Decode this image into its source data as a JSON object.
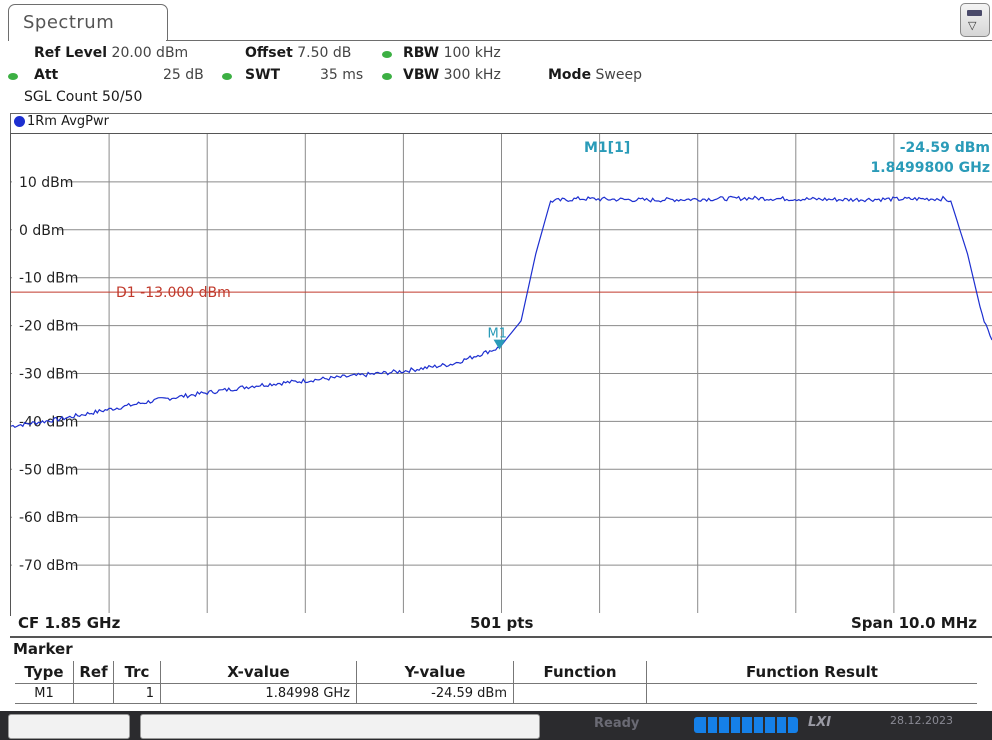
{
  "window": {
    "tab_title": "Spectrum"
  },
  "settings": {
    "ref_level_label": "Ref Level",
    "ref_level_value": "20.00 dBm",
    "offset_label": "Offset",
    "offset_value": "7.50 dB",
    "rbw_label": "RBW",
    "rbw_value": "100 kHz",
    "att_label": "Att",
    "att_value": "25 dB",
    "swt_label": "SWT",
    "swt_value": "35 ms",
    "vbw_label": "VBW",
    "vbw_value": "300 kHz",
    "mode_label": "Mode",
    "mode_value": "Sweep",
    "sgl_count": "SGL Count 50/50"
  },
  "trace_label": "1Rm AvgPwr",
  "chart_data": {
    "type": "line",
    "ylim": [
      -80,
      20
    ],
    "y_ticks": [
      10,
      0,
      -10,
      -20,
      -30,
      -40,
      -50,
      -60,
      -70
    ],
    "y_tick_labels": [
      "10 dBm",
      "0 dBm",
      "-10 dBm",
      "-20 dBm",
      "-30 dBm",
      "-40 dBm",
      "-50 dBm",
      "-60 dBm",
      "-70 dBm"
    ],
    "xlim": [
      1.845,
      1.855
    ],
    "x_unit": "GHz",
    "grid": true,
    "series": [
      {
        "x": [
          1.845,
          1.8455,
          1.846,
          1.8465,
          1.847,
          1.8475,
          1.848,
          1.8485,
          1.849,
          1.8495,
          1.84998,
          1.8502,
          1.85035,
          1.8505,
          1.8508,
          1.8515,
          1.8525,
          1.8535,
          1.8545,
          1.85458,
          1.85475,
          1.8549,
          1.855
        ],
        "values": [
          -41,
          -39.5,
          -37.5,
          -35.5,
          -34,
          -32.5,
          -31.5,
          -30.5,
          -29.5,
          -28,
          -24.59,
          -19,
          -5,
          6,
          6.5,
          6.2,
          6.6,
          6.3,
          6.5,
          6,
          -5,
          -18,
          -23
        ]
      }
    ],
    "display_line": {
      "label": "D1  -13.000 dBm",
      "value": -13.0
    },
    "marker": {
      "name": "M1",
      "readout_label": "M1[1]",
      "x": 1.84998,
      "y": -24.59,
      "y_text": "-24.59 dBm",
      "x_text": "1.8499800 GHz"
    },
    "footer": {
      "cf": "CF 1.85 GHz",
      "points": "501 pts",
      "span": "Span 10.0 MHz"
    }
  },
  "marker_table": {
    "title": "Marker",
    "headers": [
      "Type",
      "Ref",
      "Trc",
      "X-value",
      "Y-value",
      "Function",
      "Function Result"
    ],
    "rows": [
      [
        "M1",
        "",
        "1",
        "1.84998 GHz",
        "-24.59 dBm",
        "",
        ""
      ]
    ]
  },
  "status": {
    "ready": "Ready",
    "lxi": "LXI",
    "date": "28.12.2023"
  },
  "colors": {
    "trace": "#1d2fd0",
    "display_line": "#c0392b",
    "marker_text": "#2a9bb8",
    "status_dot": "#3cb043"
  }
}
